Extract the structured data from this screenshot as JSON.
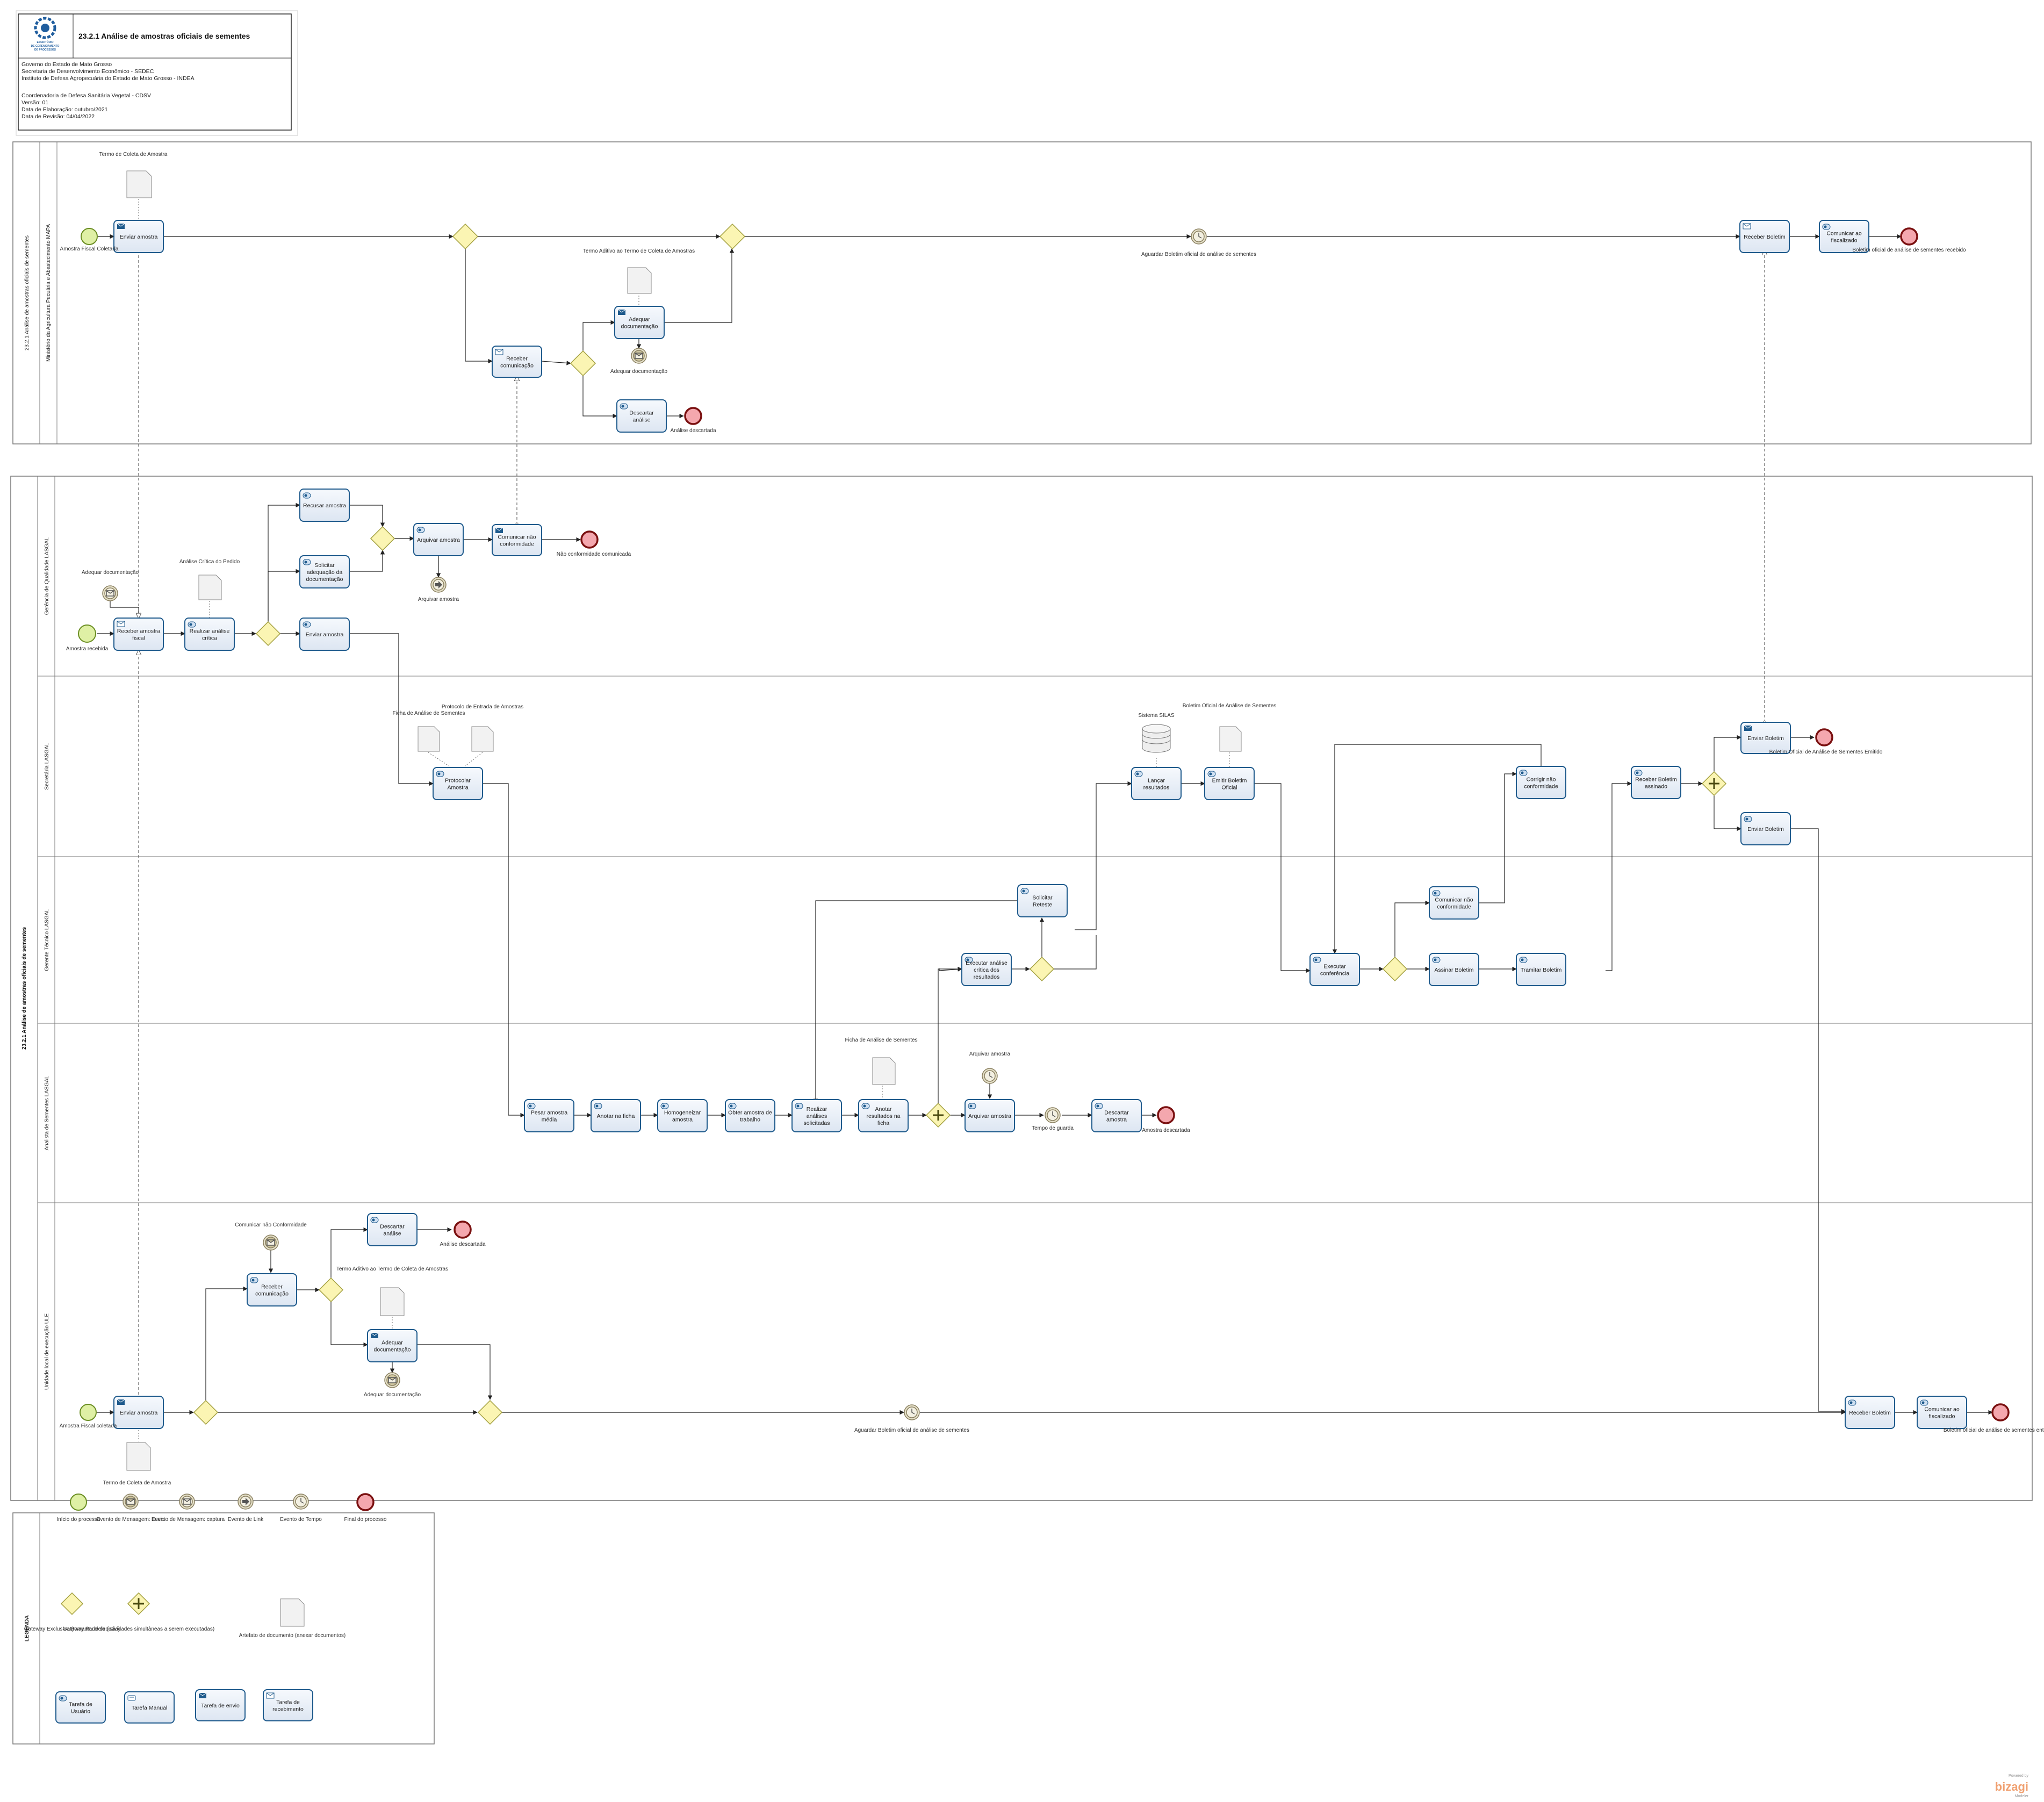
{
  "header": {
    "title": "23.2.1 Análise de amostras oficiais de sementes",
    "logo_text": [
      "ESCRITÓRIO",
      "DE GERENCIAMENTO",
      "DE PROCESSOS"
    ],
    "lines": [
      "Governo do Estado de Mato Grosso",
      "Secretaria de Desenvolvimento Econômico - SEDEC",
      "Instituto de Defesa Agropecuária do Estado de Mato Grosso - INDEA",
      "",
      "Coordenadoria de Defesa Sanitária Vegetal - CDSV",
      "Versão: 01",
      "Data de Elaboração: outubro/2021",
      "Data de Revisão: 04/04/2022"
    ]
  },
  "pools": {
    "top": {
      "label": "23.2.1 Análise de amostras oficiais de sementes",
      "lane": "Ministério da Agricultura Pecuária e Abastecimento MAPA"
    },
    "main": {
      "label": "23.2.1 Análise de amostras oficiais de sementes",
      "lanes": [
        "Gerência de Qualidade LASGAL",
        "Secretária LASGAL",
        "Gerente Técnico LASGAL",
        "Analista de Sementes LASGAL",
        "Unidade local de execução ULE"
      ]
    },
    "legend": {
      "label": "LEGENDA"
    }
  },
  "tasks": {
    "t1": "Enviar amostra",
    "t2": "Receber comunicação",
    "t3": "Adequar documentação",
    "t4": "Descartar análise",
    "t5": "Receber Boletim",
    "t6": "Comunicar ao fiscalizado",
    "t7": "Receber amostra fiscal",
    "t8": "Realizar análise crítica",
    "t9": "Recusar amostra",
    "t10": "Solicitar adequação da documentação",
    "t11": "Enviar amostra",
    "t12": "Arquivar amostra",
    "t13": "Comunicar não conformidade",
    "t14": "Protocolar Amostra",
    "t15": "Lançar resultados",
    "t16": "Emitir Boletim Oficial",
    "t17": "Corrigir não conformidade",
    "t18": "Receber Boletim assinado",
    "t19": "Enviar Boletim",
    "t20": "Enviar Boletim",
    "t21": "Solicitar Reteste",
    "t22": "Executar análise crítica dos resultados",
    "t23": "Executar conferência",
    "t24": "Comunicar não conformidade",
    "t25": "Assinar Boletim",
    "t26": "Tramitar Boletim",
    "t27": "Pesar amostra média",
    "t28": "Anotar na ficha",
    "t29": "Homogeneizar amostra",
    "t30": "Obter amostra de trabalho",
    "t31": "Realizar análises solicitadas",
    "t32": "Anotar resultados na ficha",
    "t33": "Arquivar amostra",
    "t34": "Descartar amostra",
    "t35": "Descartar análise",
    "t36": "Receber comunicação",
    "t37": "Adequar documentação",
    "t38": "Enviar amostra",
    "t39": "Receber Boletim",
    "t40": "Comunicar ao fiscalizado"
  },
  "labels": {
    "ev_start_mapa": "Amostra Fiscal Coletada",
    "doc_termo_top": "Termo de Coleta de Amostra",
    "doc_termo_aditivo_top": "Termo Aditivo ao Termo de Coleta de Amostras",
    "ev_adequar_top": "Adequar documentação",
    "ev_analise_desc_top": "Análise descartada",
    "ev_aguardar_top": "Aguardar Boletim oficial de análise de sementes",
    "ev_end_boletim_recebido": "Boletim oficial de análise de sementes recebido",
    "ev_adequar_gq": "Adequar documentação",
    "ev_amostra_recebida": "Amostra recebida",
    "doc_analise_critica": "Análise Crítica do Pedido",
    "ev_arquivar_gq": "Arquivar amostra",
    "ev_nao_conf": "Não conformidade comunicada",
    "doc_ficha_sec": "Ficha de Análise de Sementes",
    "doc_protocolo": "Protocolo de Entrada de Amostras",
    "db_silas": "Sistema SILAS",
    "doc_boletim": "Boletim Oficial de Análise de Sementes",
    "ev_boletim_emitido": "Boletim Oficial de Análise de Sementes Emitido",
    "doc_ficha_an": "Ficha de Análise de Sementes",
    "ev_arquivar_an": "Arquivar amostra",
    "ev_tempo_guarda": "Tempo de guarda",
    "ev_amostra_desc": "Amostra descartada",
    "ev_comunicar_nc_ule": "Comunicar não Conformidade",
    "ev_analise_desc_ule": "Análise descartada",
    "doc_termo_aditivo_ule": "Termo Aditivo ao Termo de Coleta de Amostras",
    "ev_adequar_ule": "Adequar documentação",
    "ev_start_ule": "Amostra Fiscal coletada",
    "doc_termo_ule": "Termo de Coleta de Amostra",
    "ev_aguardar_ule": "Aguardar Boletim oficial de análise de sementes",
    "ev_end_ule": "Boletim oficial de análise de sementes entregue"
  },
  "legend": {
    "items": [
      "Início do processo",
      "Evento de Mensagem: envio",
      "Evento de Mensagem: captura",
      "Evento de Link",
      "Evento de Tempo",
      "Final do processo",
      "Gateway Exclusivo (tomada de decisão)",
      "Gateway Paralelo (atividades simultâneas a serem executadas)",
      "Artefato de documento (anexar documentos)"
    ],
    "tasks": [
      "Tarefa de Usuário",
      "Tarefa Manual",
      "Tarefa de envio",
      "Tarefa de recebimento"
    ]
  },
  "watermark": {
    "line1": "Powered by",
    "line2": "bizagi",
    "line3": "Modeler"
  },
  "colors": {
    "task_fill": "#e8eef7",
    "task_stroke": "#1e5a8c",
    "start_fill": "#dff0a5",
    "start_stroke": "#6b8e23",
    "end_fill": "#f4a7ae",
    "end_stroke": "#7a1010",
    "gateway_fill": "#fbf5b3",
    "gateway_stroke": "#a3a040",
    "inter_fill": "#e4dfc8",
    "inter_stroke": "#8a8060"
  }
}
